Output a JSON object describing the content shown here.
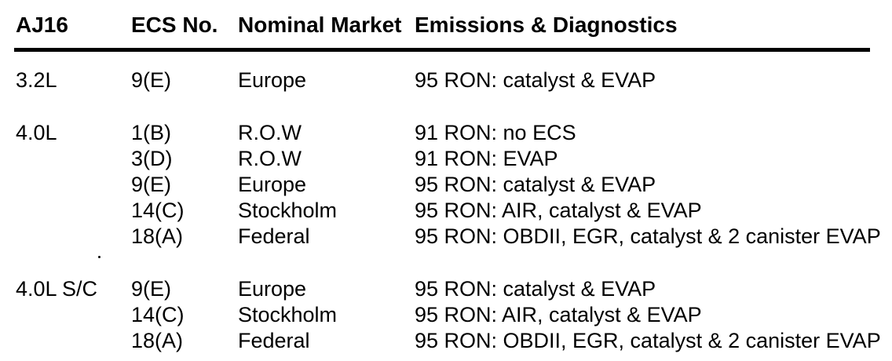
{
  "colors": {
    "background": "#ffffff",
    "text": "#000000",
    "rule": "#000000"
  },
  "table": {
    "headers": [
      "AJ16",
      "ECS No.",
      "Nominal Market",
      "Emissions & Diagnostics"
    ],
    "sections": [
      {
        "engine": "3.2L",
        "rows": [
          {
            "ecs": "9(E)",
            "market": "Europe",
            "emissions": "95 RON: catalyst & EVAP"
          }
        ]
      },
      {
        "engine": "4.0L",
        "rows": [
          {
            "ecs": "1(B)",
            "market": "R.O.W",
            "emissions": "91 RON: no ECS"
          },
          {
            "ecs": "3(D)",
            "market": "R.O.W",
            "emissions": "91 RON: EVAP"
          },
          {
            "ecs": "9(E)",
            "market": "Europe",
            "emissions": "95 RON: catalyst & EVAP"
          },
          {
            "ecs": "14(C)",
            "market": "Stockholm",
            "emissions": "95 RON: AIR, catalyst & EVAP"
          },
          {
            "ecs": "18(A)",
            "market": "Federal",
            "emissions": "95 RON: OBDII, EGR, catalyst & 2 canister EVAP"
          }
        ]
      },
      {
        "engine": "4.0L S/C",
        "rows": [
          {
            "ecs": "9(E)",
            "market": "Europe",
            "emissions": "95 RON: catalyst & EVAP"
          },
          {
            "ecs": "14(C)",
            "market": "Stockholm",
            "emissions": "95 RON: AIR, catalyst & EVAP"
          },
          {
            "ecs": "18(A)",
            "market": "Federal",
            "emissions": "95 RON: OBDII, EGR, catalyst & 2 canister EVAP"
          }
        ]
      }
    ]
  }
}
